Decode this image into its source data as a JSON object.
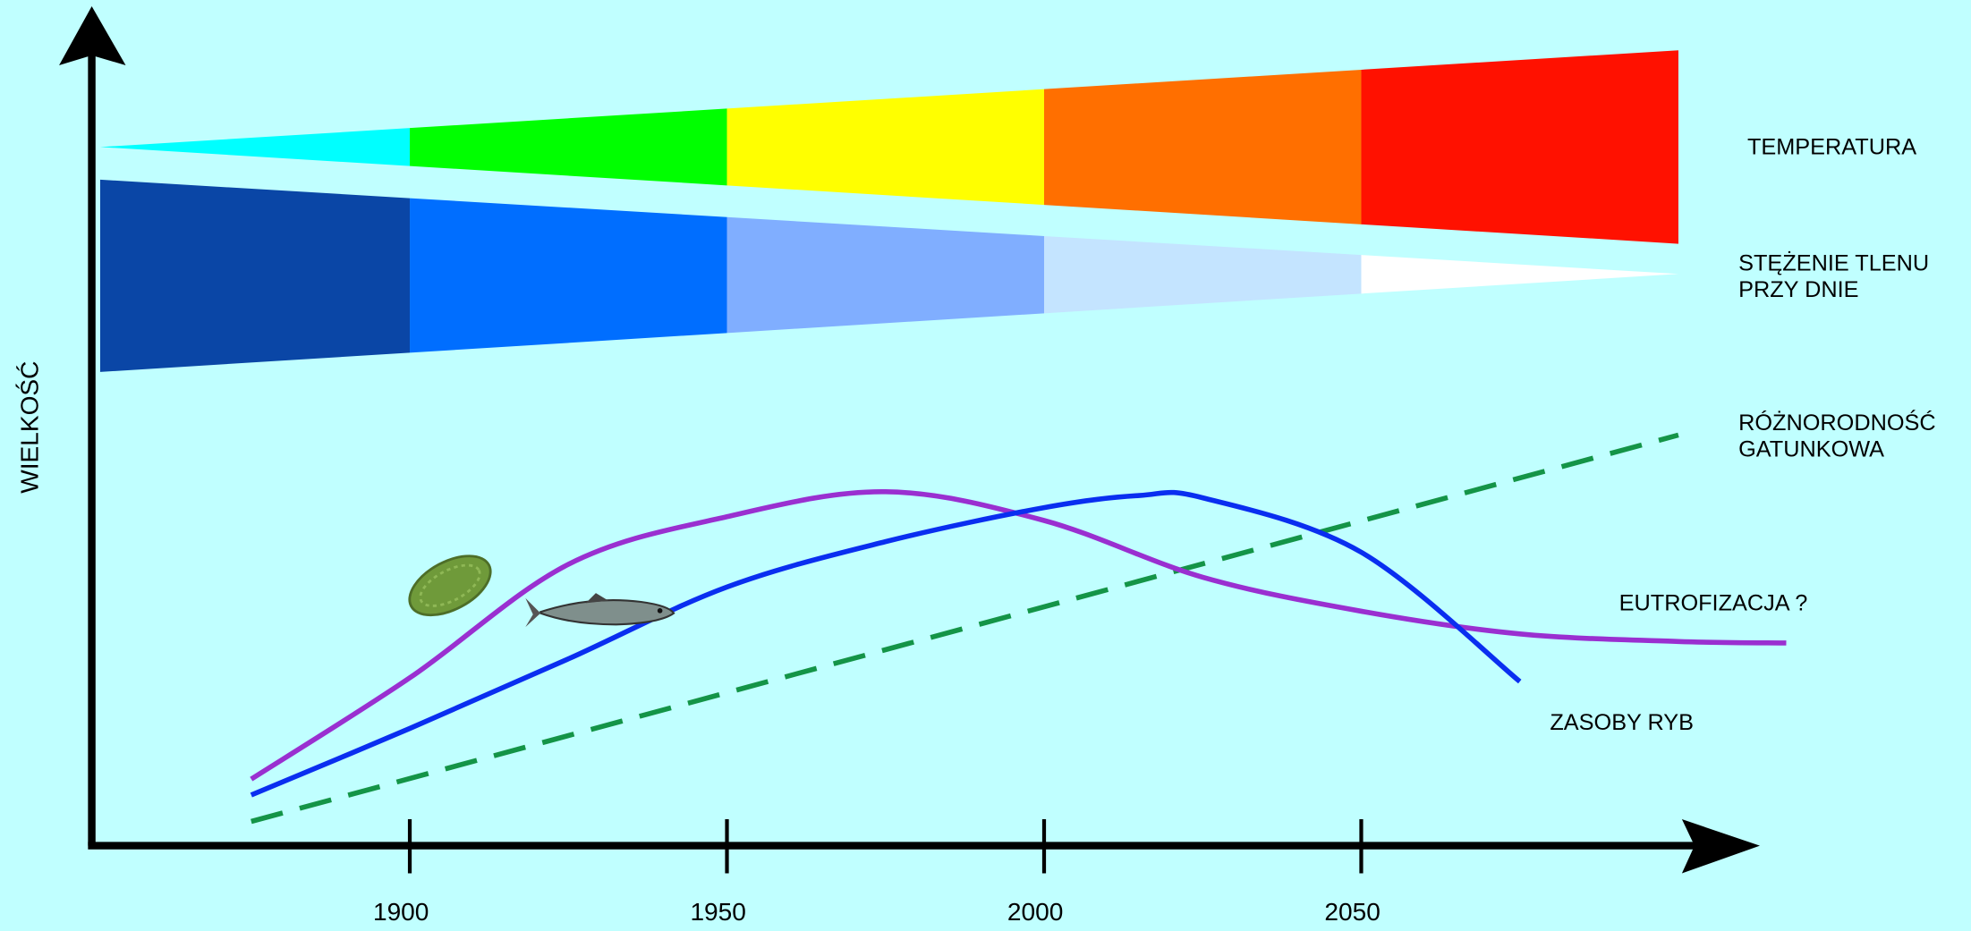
{
  "chart_data": {
    "type": "line",
    "y_label": "WIELKOŚĆ",
    "xlim": [
      1850,
      2113
    ],
    "ylim": [
      0,
      111
    ],
    "xticks": [
      1900,
      1950,
      2000,
      2050
    ],
    "bands": [
      {
        "name": [
          "TEMPERATURA"
        ],
        "shape": "widening",
        "colors": [
          "#00ffff",
          "#00ff00",
          "#ffff00",
          "#ff6f00",
          "#ff1100"
        ]
      },
      {
        "name": [
          "STĘŻENIE TLENU",
          "PRZY DNIE"
        ],
        "shape": "narrowing",
        "colors": [
          "#0a46a6",
          "#006eff",
          "#80aeff",
          "#c4e4ff",
          "#ffffff"
        ]
      }
    ],
    "series": [
      {
        "name": [
          "RÓŻNORODNOŚĆ",
          "GATUNKOWA"
        ],
        "color": "#149447",
        "dashed": true,
        "x": [
          1875,
          2100
        ],
        "values": [
          3.2,
          54.3
        ]
      },
      {
        "name": [
          "EUTROFIZACJA ?"
        ],
        "color": "#9a2fd0",
        "dashed": false,
        "x": [
          1875,
          1900,
          1925,
          1950,
          1975,
          2000,
          2025,
          2050,
          2075,
          2100,
          2117
        ],
        "values": [
          8.8,
          22.2,
          37.2,
          43.5,
          46.8,
          43,
          35.5,
          31,
          28,
          27,
          26.8
        ]
      },
      {
        "name": [
          "ZASOBY RYB"
        ],
        "color": "#0a2ef0",
        "dashed": false,
        "x": [
          1875,
          1900,
          1925,
          1950,
          1975,
          2000,
          2015,
          2025,
          2050,
          2075
        ],
        "values": [
          6.7,
          15.5,
          24.7,
          34.2,
          40.2,
          44.7,
          46.3,
          46,
          38.8,
          21.7
        ]
      }
    ]
  }
}
